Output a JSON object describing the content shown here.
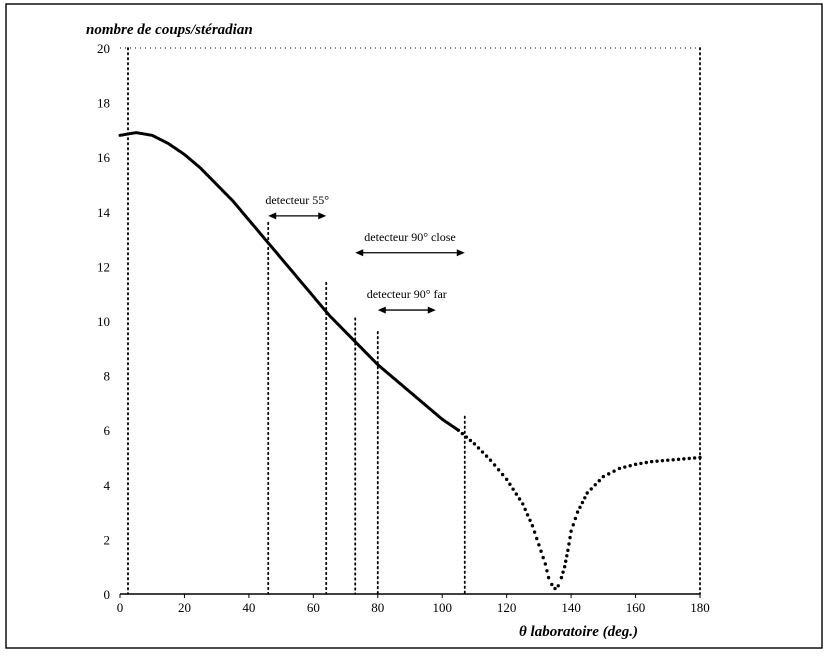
{
  "chart_data": {
    "type": "scatter",
    "ylabel": "nombre de coups/stéradian",
    "xlabel": "θ  laboratoire (deg.)",
    "xlim": [
      0,
      180
    ],
    "ylim": [
      0,
      20
    ],
    "x_ticks": [
      0,
      20,
      40,
      60,
      80,
      100,
      120,
      140,
      160,
      180
    ],
    "y_ticks": [
      0,
      2,
      4,
      6,
      8,
      10,
      12,
      14,
      16,
      18,
      20
    ],
    "grid": false,
    "series": [
      {
        "x": [
          0,
          5,
          10,
          15,
          20,
          25,
          30,
          35,
          40,
          45,
          50,
          55,
          60,
          65,
          70,
          75,
          80,
          85,
          90,
          95,
          100,
          105,
          110,
          115,
          120,
          125,
          128,
          130,
          132,
          133,
          134,
          135,
          136,
          137,
          138,
          139,
          140,
          142,
          145,
          150,
          155,
          160,
          165,
          170,
          175,
          180
        ],
        "y": [
          16.8,
          16.9,
          16.8,
          16.5,
          16.1,
          15.6,
          15.0,
          14.4,
          13.7,
          13.0,
          12.3,
          11.6,
          10.9,
          10.2,
          9.6,
          9.0,
          8.4,
          7.9,
          7.4,
          6.9,
          6.4,
          6.0,
          5.5,
          4.9,
          4.2,
          3.3,
          2.5,
          1.8,
          1.1,
          0.6,
          0.35,
          0.2,
          0.3,
          0.6,
          1.0,
          1.6,
          2.3,
          3.0,
          3.7,
          4.3,
          4.6,
          4.75,
          4.85,
          4.9,
          4.95,
          5.0
        ]
      }
    ],
    "annotations": [
      {
        "text": "detecteur 55°",
        "x_from": 46,
        "x_to": 64,
        "y": 13.85
      },
      {
        "text": "detecteur 90° close",
        "x_from": 73,
        "x_to": 107,
        "y": 12.5
      },
      {
        "text": "detecteur 90° far",
        "x_from": 80,
        "x_to": 98,
        "y": 10.4
      }
    ],
    "vertical_lines": [
      {
        "x": 0,
        "y_top": 20
      },
      {
        "x": 46,
        "y_top": 13.6
      },
      {
        "x": 64,
        "y_top": 11.4
      },
      {
        "x": 73,
        "y_top": 10.1
      },
      {
        "x": 80,
        "y_top": 9.6
      },
      {
        "x": 107,
        "y_top": 6.5
      },
      {
        "x": 180,
        "y_top": 20
      }
    ]
  }
}
